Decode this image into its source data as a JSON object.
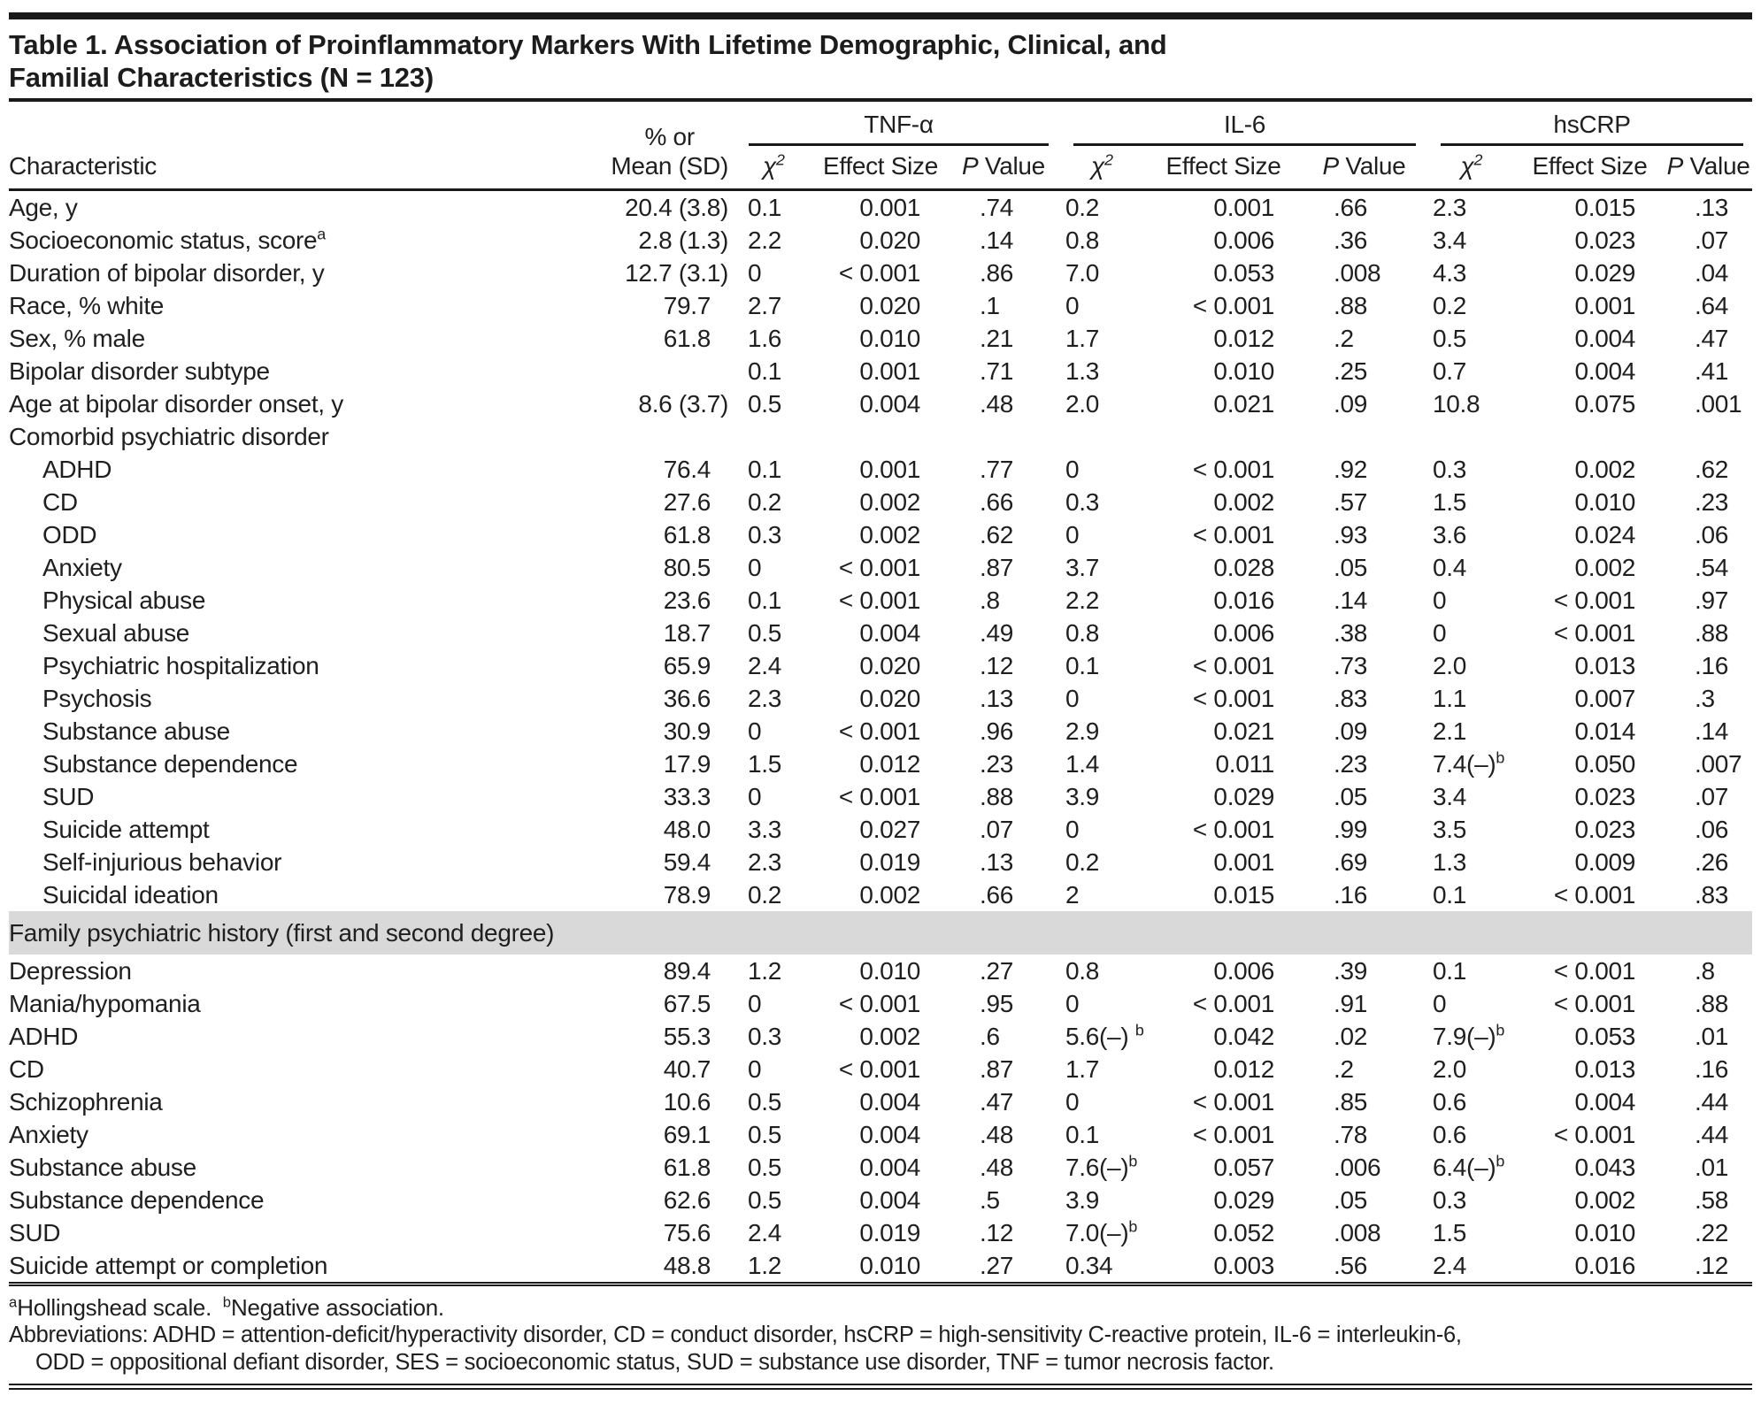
{
  "title": {
    "line1": "Table 1. Association of Proinflammatory Markers With Lifetime Demographic, Clinical, and",
    "line2": "Familial Characteristics (N = 123)"
  },
  "colors": {
    "rule": "#191919",
    "band_bg": "#d9d9d9",
    "text": "#1f1f1f"
  },
  "table": {
    "col_headers": {
      "characteristic": "Characteristic",
      "mean_line1": "% or",
      "mean_line2": "Mean (SD)",
      "groups": [
        "TNF-α",
        "IL-6",
        "hsCRP"
      ],
      "stat_chi": "χ{^2}",
      "stat_effect": "Effect Size",
      "stat_p": "P Value"
    },
    "rows": [
      {
        "type": "data",
        "indent": false,
        "label": "Age, y",
        "mean": "20.4 (3.8)",
        "tnf": [
          "0.1",
          "0.001",
          ".74"
        ],
        "il6": [
          "0.2",
          "0.001",
          ".66"
        ],
        "hscrp": [
          "2.3",
          "0.015",
          ".13"
        ]
      },
      {
        "type": "data",
        "indent": false,
        "label": "Socioeconomic status, score{^a}",
        "mean": "2.8 (1.3)",
        "tnf": [
          "2.2",
          "0.020",
          ".14"
        ],
        "il6": [
          "0.8",
          "0.006",
          ".36"
        ],
        "hscrp": [
          "3.4",
          "0.023",
          ".07"
        ]
      },
      {
        "type": "data",
        "indent": false,
        "label": "Duration of bipolar disorder, y",
        "mean": "12.7 (3.1)",
        "tnf": [
          "0",
          "< 0.001",
          ".86"
        ],
        "il6": [
          "7.0",
          "0.053",
          ".008"
        ],
        "hscrp": [
          "4.3",
          "0.029",
          ".04"
        ]
      },
      {
        "type": "data",
        "indent": false,
        "label": "Race, % white",
        "mean": "79.7",
        "tnf": [
          "2.7",
          "0.020",
          ".1"
        ],
        "il6": [
          "0",
          "< 0.001",
          ".88"
        ],
        "hscrp": [
          "0.2",
          "0.001",
          ".64"
        ]
      },
      {
        "type": "data",
        "indent": false,
        "label": "Sex, % male",
        "mean": "61.8",
        "tnf": [
          "1.6",
          "0.010",
          ".21"
        ],
        "il6": [
          "1.7",
          "0.012",
          ".2"
        ],
        "hscrp": [
          "0.5",
          "0.004",
          ".47"
        ]
      },
      {
        "type": "data",
        "indent": false,
        "label": "Bipolar disorder subtype",
        "mean": "",
        "tnf": [
          "0.1",
          "0.001",
          ".71"
        ],
        "il6": [
          "1.3",
          "0.010",
          ".25"
        ],
        "hscrp": [
          "0.7",
          "0.004",
          ".41"
        ]
      },
      {
        "type": "data",
        "indent": false,
        "label": "Age at bipolar disorder onset, y",
        "mean": "8.6 (3.7)",
        "tnf": [
          "0.5",
          "0.004",
          ".48"
        ],
        "il6": [
          "2.0",
          "0.021",
          ".09"
        ],
        "hscrp": [
          "10.8",
          "0.075",
          ".001"
        ]
      },
      {
        "type": "section",
        "label": "Comorbid psychiatric disorder"
      },
      {
        "type": "data",
        "indent": true,
        "label": "ADHD",
        "mean": "76.4",
        "tnf": [
          "0.1",
          "0.001",
          ".77"
        ],
        "il6": [
          "0",
          "< 0.001",
          ".92"
        ],
        "hscrp": [
          "0.3",
          "0.002",
          ".62"
        ]
      },
      {
        "type": "data",
        "indent": true,
        "label": "CD",
        "mean": "27.6",
        "tnf": [
          "0.2",
          "0.002",
          ".66"
        ],
        "il6": [
          "0.3",
          "0.002",
          ".57"
        ],
        "hscrp": [
          "1.5",
          "0.010",
          ".23"
        ]
      },
      {
        "type": "data",
        "indent": true,
        "label": "ODD",
        "mean": "61.8",
        "tnf": [
          "0.3",
          "0.002",
          ".62"
        ],
        "il6": [
          "0",
          "< 0.001",
          ".93"
        ],
        "hscrp": [
          "3.6",
          "0.024",
          ".06"
        ]
      },
      {
        "type": "data",
        "indent": true,
        "label": "Anxiety",
        "mean": "80.5",
        "tnf": [
          "0",
          "< 0.001",
          ".87"
        ],
        "il6": [
          "3.7",
          "0.028",
          ".05"
        ],
        "hscrp": [
          "0.4",
          "0.002",
          ".54"
        ]
      },
      {
        "type": "data",
        "indent": true,
        "label": "Physical abuse",
        "mean": "23.6",
        "tnf": [
          "0.1",
          "< 0.001",
          ".8"
        ],
        "il6": [
          "2.2",
          "0.016",
          ".14"
        ],
        "hscrp": [
          "0",
          "< 0.001",
          ".97"
        ]
      },
      {
        "type": "data",
        "indent": true,
        "label": "Sexual abuse",
        "mean": "18.7",
        "tnf": [
          "0.5",
          "0.004",
          ".49"
        ],
        "il6": [
          "0.8",
          "0.006",
          ".38"
        ],
        "hscrp": [
          "0",
          "< 0.001",
          ".88"
        ]
      },
      {
        "type": "data",
        "indent": true,
        "label": "Psychiatric hospitalization",
        "mean": "65.9",
        "tnf": [
          "2.4",
          "0.020",
          ".12"
        ],
        "il6": [
          "0.1",
          "< 0.001",
          ".73"
        ],
        "hscrp": [
          "2.0",
          "0.013",
          ".16"
        ]
      },
      {
        "type": "data",
        "indent": true,
        "label": "Psychosis",
        "mean": "36.6",
        "tnf": [
          "2.3",
          "0.020",
          ".13"
        ],
        "il6": [
          "0",
          "< 0.001",
          ".83"
        ],
        "hscrp": [
          "1.1",
          "0.007",
          ".3"
        ]
      },
      {
        "type": "data",
        "indent": true,
        "label": "Substance abuse",
        "mean": "30.9",
        "tnf": [
          "0",
          "< 0.001",
          ".96"
        ],
        "il6": [
          "2.9",
          "0.021",
          ".09"
        ],
        "hscrp": [
          "2.1",
          "0.014",
          ".14"
        ]
      },
      {
        "type": "data",
        "indent": true,
        "label": "Substance dependence",
        "mean": "17.9",
        "tnf": [
          "1.5",
          "0.012",
          ".23"
        ],
        "il6": [
          "1.4",
          "0.011",
          ".23"
        ],
        "hscrp": [
          "7.4(–){^b}",
          "0.050",
          ".007"
        ]
      },
      {
        "type": "data",
        "indent": true,
        "label": "SUD",
        "mean": "33.3",
        "tnf": [
          "0",
          "< 0.001",
          ".88"
        ],
        "il6": [
          "3.9",
          "0.029",
          ".05"
        ],
        "hscrp": [
          "3.4",
          "0.023",
          ".07"
        ]
      },
      {
        "type": "data",
        "indent": true,
        "label": "Suicide attempt",
        "mean": "48.0",
        "tnf": [
          "3.3",
          "0.027",
          ".07"
        ],
        "il6": [
          "0",
          "< 0.001",
          ".99"
        ],
        "hscrp": [
          "3.5",
          "0.023",
          ".06"
        ]
      },
      {
        "type": "data",
        "indent": true,
        "label": "Self-injurious behavior",
        "mean": "59.4",
        "tnf": [
          "2.3",
          "0.019",
          ".13"
        ],
        "il6": [
          "0.2",
          "0.001",
          ".69"
        ],
        "hscrp": [
          "1.3",
          "0.009",
          ".26"
        ]
      },
      {
        "type": "data",
        "indent": true,
        "label": "Suicidal ideation",
        "mean": "78.9",
        "tnf": [
          "0.2",
          "0.002",
          ".66"
        ],
        "il6": [
          "2",
          "0.015",
          ".16"
        ],
        "hscrp": [
          "0.1",
          "< 0.001",
          ".83"
        ]
      },
      {
        "type": "band",
        "label": "Family psychiatric history (first and second degree)"
      },
      {
        "type": "data",
        "indent": false,
        "label": "Depression",
        "mean": "89.4",
        "tnf": [
          "1.2",
          "0.010",
          ".27"
        ],
        "il6": [
          "0.8",
          "0.006",
          ".39"
        ],
        "hscrp": [
          "0.1",
          "< 0.001",
          ".8"
        ]
      },
      {
        "type": "data",
        "indent": false,
        "label": "Mania/hypomania",
        "mean": "67.5",
        "tnf": [
          "0",
          "< 0.001",
          ".95"
        ],
        "il6": [
          "0",
          "< 0.001",
          ".91"
        ],
        "hscrp": [
          "0",
          "< 0.001",
          ".88"
        ]
      },
      {
        "type": "data",
        "indent": false,
        "label": "ADHD",
        "mean": "55.3",
        "tnf": [
          "0.3",
          "0.002",
          ".6"
        ],
        "il6": [
          "5.6(–) {^b}",
          "0.042",
          ".02"
        ],
        "hscrp": [
          "7.9(–){^b}",
          "0.053",
          ".01"
        ]
      },
      {
        "type": "data",
        "indent": false,
        "label": "CD",
        "mean": "40.7",
        "tnf": [
          "0",
          "< 0.001",
          ".87"
        ],
        "il6": [
          "1.7",
          "0.012",
          ".2"
        ],
        "hscrp": [
          "2.0",
          "0.013",
          ".16"
        ]
      },
      {
        "type": "data",
        "indent": false,
        "label": "Schizophrenia",
        "mean": "10.6",
        "tnf": [
          "0.5",
          "0.004",
          ".47"
        ],
        "il6": [
          "0",
          "< 0.001",
          ".85"
        ],
        "hscrp": [
          "0.6",
          "0.004",
          ".44"
        ]
      },
      {
        "type": "data",
        "indent": false,
        "label": "Anxiety",
        "mean": "69.1",
        "tnf": [
          "0.5",
          "0.004",
          ".48"
        ],
        "il6": [
          "0.1",
          "< 0.001",
          ".78"
        ],
        "hscrp": [
          "0.6",
          "< 0.001",
          ".44"
        ]
      },
      {
        "type": "data",
        "indent": false,
        "label": "Substance abuse",
        "mean": "61.8",
        "tnf": [
          "0.5",
          "0.004",
          ".48"
        ],
        "il6": [
          "7.6(–){^b}",
          "0.057",
          ".006"
        ],
        "hscrp": [
          "6.4(–){^b}",
          "0.043",
          ".01"
        ]
      },
      {
        "type": "data",
        "indent": false,
        "label": "Substance dependence",
        "mean": "62.6",
        "tnf": [
          "0.5",
          "0.004",
          ".5"
        ],
        "il6": [
          "3.9",
          "0.029",
          ".05"
        ],
        "hscrp": [
          "0.3",
          "0.002",
          ".58"
        ]
      },
      {
        "type": "data",
        "indent": false,
        "label": "SUD",
        "mean": "75.6",
        "tnf": [
          "2.4",
          "0.019",
          ".12"
        ],
        "il6": [
          "7.0(–){^b}",
          "0.052",
          ".008"
        ],
        "hscrp": [
          "1.5",
          "0.010",
          ".22"
        ]
      },
      {
        "type": "data",
        "indent": false,
        "label": "Suicide attempt or completion",
        "mean": "48.8",
        "tnf": [
          "1.2",
          "0.010",
          ".27"
        ],
        "il6": [
          "0.34",
          "0.003",
          ".56"
        ],
        "hscrp": [
          "2.4",
          "0.016",
          ".12"
        ]
      }
    ]
  },
  "footnotes": {
    "notes": "{^a}Hollingshead scale. {^b}Negative association.",
    "abbrev_line1": "Abbreviations: ADHD = attention-deficit/hyperactivity disorder, CD = conduct disorder, hsCRP = high-sensitivity C-reactive protein, IL-6 = interleukin-6,",
    "abbrev_line2": "ODD = oppositional defiant disorder, SES = socioeconomic status, SUD = substance use disorder, TNF = tumor necrosis factor."
  }
}
